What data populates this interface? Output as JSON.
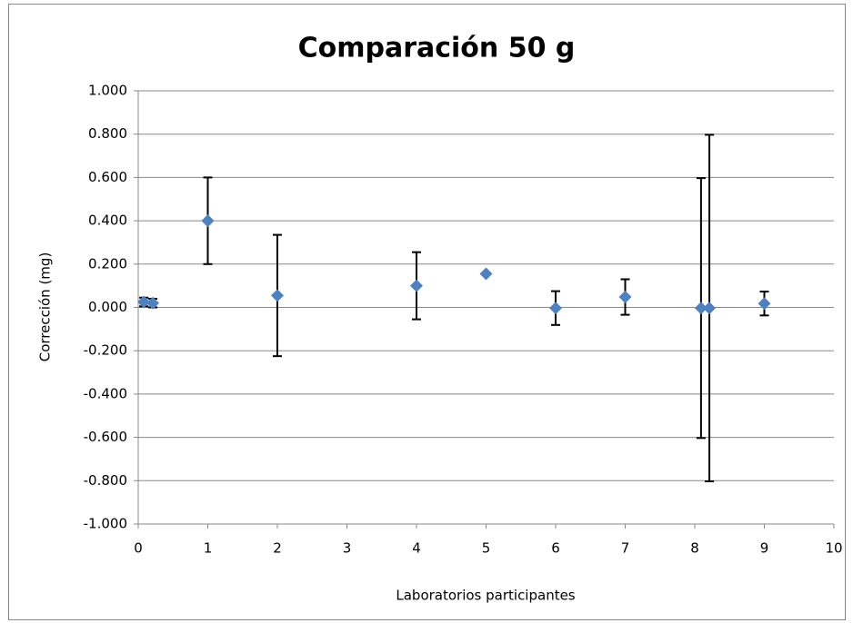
{
  "chart_data": {
    "type": "scatter",
    "title": "Comparación 50 g",
    "x_label": "Laboratorios participantes",
    "y_label": "Corrección (mg)",
    "x": [
      0.08,
      0.21,
      1,
      2,
      4,
      5,
      6,
      7,
      8.09,
      8.21,
      9
    ],
    "values": [
      0.025,
      0.02,
      0.4,
      0.055,
      0.1,
      0.155,
      -0.003,
      0.048,
      -0.003,
      -0.003,
      0.018
    ],
    "errors": [
      0.02,
      0.02,
      0.2,
      0.28,
      0.155,
      null,
      0.078,
      0.082,
      0.6,
      0.8,
      0.055
    ],
    "color": "#4f81bd",
    "xlim": [
      0,
      10
    ],
    "xticks": [
      0,
      1,
      2,
      3,
      4,
      5,
      6,
      7,
      8,
      9,
      10
    ],
    "ylim": [
      -1,
      1
    ],
    "yticks": [
      {
        "value": -1,
        "label": "-1.000"
      },
      {
        "value": -0.8,
        "label": "-0.800"
      },
      {
        "value": -0.6,
        "label": "-0.600"
      },
      {
        "value": -0.4,
        "label": "-0.400"
      },
      {
        "value": -0.2,
        "label": "-0.200"
      },
      {
        "value": 0,
        "label": "0.000"
      },
      {
        "value": 0.2,
        "label": "0.200"
      },
      {
        "value": 0.4,
        "label": "0.400"
      },
      {
        "value": 0.6,
        "label": "0.600"
      },
      {
        "value": 0.8,
        "label": "0.800"
      },
      {
        "value": 1,
        "label": "1.000"
      }
    ],
    "grid": true
  }
}
